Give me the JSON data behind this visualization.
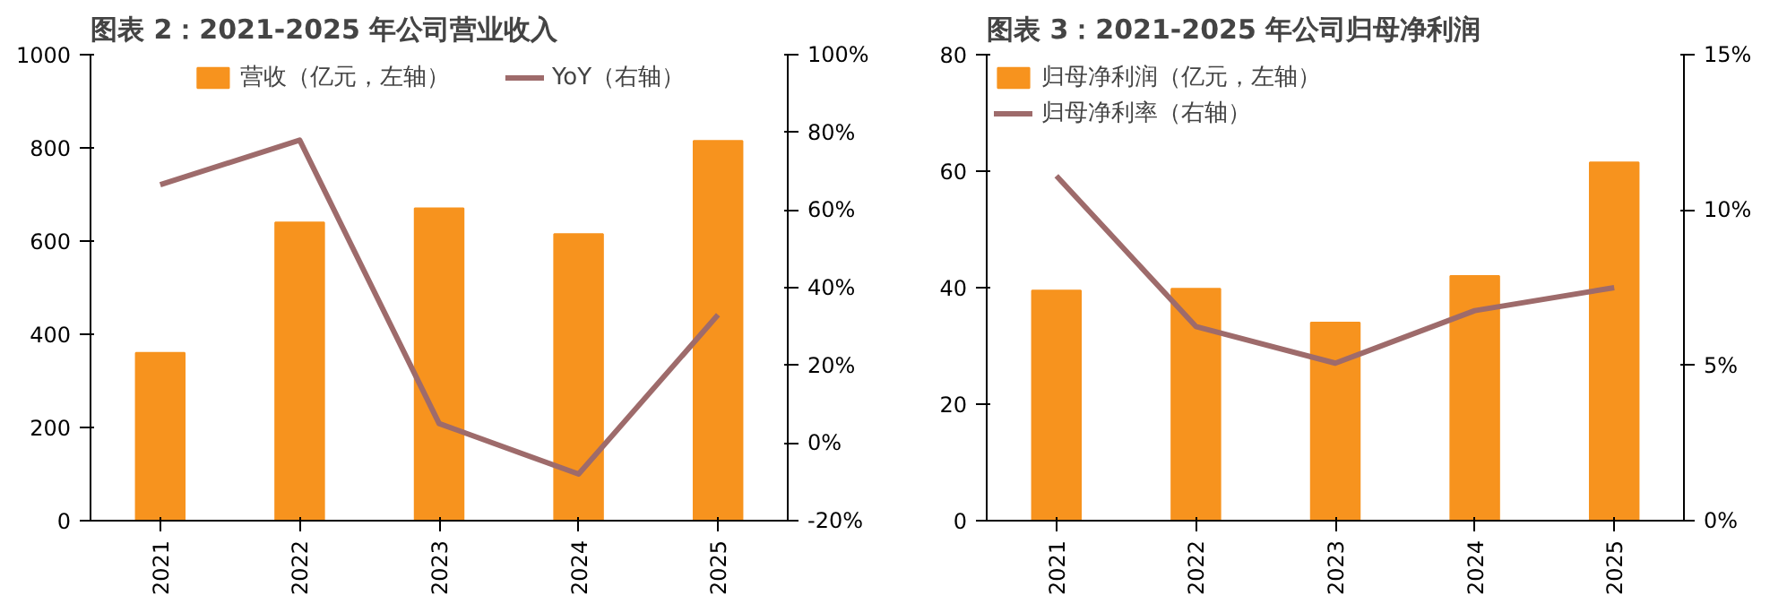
{
  "chart_data": [
    {
      "type": "bar",
      "title": "图表 2：2021-2025 年公司营业收入",
      "categories": [
        "2021",
        "2022",
        "2023",
        "2024",
        "2025"
      ],
      "series": [
        {
          "name": "营收（亿元，左轴）",
          "color": "#f7931e",
          "values": [
            360,
            640,
            670,
            615,
            815
          ]
        },
        {
          "name": "YoY（右轴）",
          "type": "line",
          "axis": "y2",
          "color": "#9e6b6b",
          "values": [
            66.5,
            78,
            5,
            -8,
            33
          ]
        }
      ],
      "ylim": [
        0,
        1000
      ],
      "yticks": [
        0,
        200,
        400,
        600,
        800,
        1000
      ],
      "y2lim": [
        -20,
        100
      ],
      "y2ticks": [
        {
          "value": -20,
          "label": "-20%"
        },
        {
          "value": 0,
          "label": "0%"
        },
        {
          "value": 20,
          "label": "20%"
        },
        {
          "value": 40,
          "label": "40%"
        },
        {
          "value": 60,
          "label": "60%"
        },
        {
          "value": 80,
          "label": "80%"
        },
        {
          "value": 100,
          "label": "100%"
        }
      ],
      "grid": false,
      "legend": "top",
      "marker": "none",
      "line_style": "solid"
    },
    {
      "type": "bar",
      "title": "图表 3：2021-2025 年公司归母净利润",
      "categories": [
        "2021",
        "2022",
        "2023",
        "2024",
        "2025"
      ],
      "series": [
        {
          "name": "归母净利润（亿元，左轴）",
          "color": "#f7931e",
          "values": [
            39.5,
            39.8,
            34,
            42,
            61.5
          ]
        },
        {
          "name": "归母净利率（右轴）",
          "type": "line",
          "axis": "y2",
          "color": "#9e6b6b",
          "values": [
            11.1,
            6.25,
            5.07,
            6.76,
            7.5
          ]
        }
      ],
      "ylim": [
        0,
        80
      ],
      "yticks": [
        0,
        20,
        40,
        60,
        80
      ],
      "y2lim": [
        0,
        15
      ],
      "y2ticks": [
        {
          "value": 0,
          "label": "0%"
        },
        {
          "value": 5,
          "label": "5%"
        },
        {
          "value": 10,
          "label": "10%"
        },
        {
          "value": 15,
          "label": "15%"
        }
      ],
      "grid": false,
      "legend": "top left",
      "marker": "none",
      "line_style": "solid"
    }
  ]
}
